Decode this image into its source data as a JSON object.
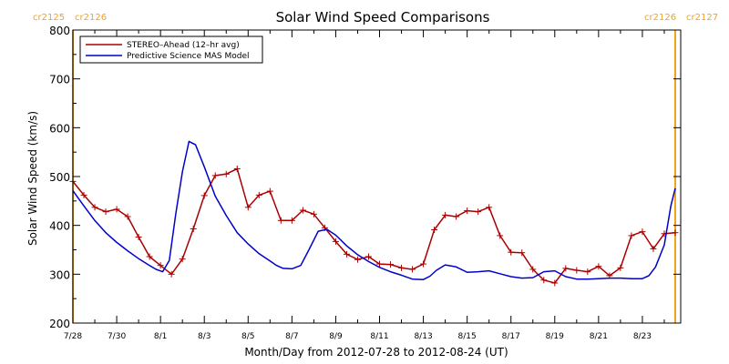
{
  "chart_data": {
    "type": "line",
    "title": "Solar Wind Speed Comparisons",
    "xlabel": "Month/Day from 2012-07-28 to 2012-08-24 (UT)",
    "ylabel": "Solar Wind Speed (km/s)",
    "xlim": [
      0,
      27.75
    ],
    "ylim": [
      200,
      800
    ],
    "x_unit": "days since 2012-07-28 00:00 UT",
    "y_ticks": [
      200,
      300,
      400,
      500,
      600,
      700,
      800
    ],
    "x_ticks": [
      {
        "x": 0,
        "label": "7/28"
      },
      {
        "x": 2,
        "label": "7/30"
      },
      {
        "x": 4,
        "label": "8/1"
      },
      {
        "x": 6,
        "label": "8/3"
      },
      {
        "x": 8,
        "label": "8/5"
      },
      {
        "x": 10,
        "label": "8/7"
      },
      {
        "x": 12,
        "label": "8/9"
      },
      {
        "x": 14,
        "label": "8/11"
      },
      {
        "x": 16,
        "label": "8/13"
      },
      {
        "x": 18,
        "label": "8/15"
      },
      {
        "x": 20,
        "label": "8/17"
      },
      {
        "x": 22,
        "label": "8/19"
      },
      {
        "x": 24,
        "label": "8/21"
      },
      {
        "x": 26,
        "label": "8/23"
      }
    ],
    "legend_position": "top-left",
    "carrington": {
      "left": {
        "x": 0,
        "labels": [
          "cr2125",
          "cr2126"
        ]
      },
      "right": {
        "x": 27.5,
        "labels": [
          "cr2126",
          "cr2127"
        ]
      },
      "color": "#f5a21b"
    },
    "series": [
      {
        "name": "STEREO–Ahead (12–hr avg)",
        "color": "#aa0000",
        "markers": true,
        "x": [
          0.0,
          0.5,
          1.0,
          1.5,
          2.0,
          2.5,
          3.0,
          3.5,
          4.0,
          4.5,
          5.0,
          5.5,
          6.0,
          6.5,
          7.0,
          7.5,
          8.0,
          8.5,
          9.0,
          9.5,
          10.0,
          10.5,
          11.0,
          11.5,
          12.0,
          12.5,
          13.0,
          13.5,
          14.0,
          14.5,
          15.0,
          15.5,
          16.0,
          16.5,
          17.0,
          17.5,
          18.0,
          18.5,
          19.0,
          19.5,
          20.0,
          20.5,
          21.0,
          21.5,
          22.0,
          22.5,
          23.0,
          23.5,
          24.0,
          24.5,
          25.0,
          25.5,
          26.0,
          26.5,
          27.0,
          27.5
        ],
        "y": [
          490,
          462,
          437,
          428,
          433,
          418,
          376,
          336,
          318,
          300,
          331,
          393,
          461,
          502,
          505,
          516,
          437,
          462,
          470,
          410,
          410,
          431,
          423,
          395,
          367,
          341,
          330,
          336,
          321,
          320,
          313,
          310,
          321,
          391,
          421,
          418,
          430,
          428,
          437,
          379,
          345,
          344,
          310,
          288,
          282,
          312,
          308,
          305,
          316,
          297,
          313,
          379,
          387,
          352,
          383,
          385
        ]
      },
      {
        "name": "Predictive Science MAS Model",
        "color": "#0000cc",
        "markers": false,
        "x": [
          0.0,
          0.5,
          1.0,
          1.5,
          2.0,
          2.5,
          3.0,
          3.5,
          3.8,
          4.1,
          4.4,
          4.7,
          5.0,
          5.3,
          5.6,
          6.0,
          6.5,
          7.0,
          7.5,
          8.0,
          8.5,
          9.0,
          9.3,
          9.6,
          10.0,
          10.4,
          10.8,
          11.2,
          11.6,
          12.0,
          12.5,
          13.0,
          13.5,
          14.0,
          14.5,
          15.0,
          15.5,
          16.0,
          16.3,
          16.6,
          17.0,
          17.5,
          18.0,
          18.5,
          19.0,
          19.5,
          20.0,
          20.5,
          21.0,
          21.5,
          22.0,
          22.5,
          23.0,
          23.5,
          24.0,
          24.5,
          25.0,
          25.5,
          26.0,
          26.3,
          26.6,
          27.0,
          27.3,
          27.5
        ],
        "y": [
          471,
          440,
          410,
          385,
          365,
          348,
          332,
          318,
          310,
          305,
          328,
          425,
          510,
          572,
          565,
          520,
          460,
          420,
          385,
          362,
          342,
          327,
          318,
          312,
          311,
          318,
          352,
          388,
          392,
          380,
          358,
          340,
          326,
          314,
          305,
          298,
          290,
          289,
          296,
          308,
          319,
          315,
          304,
          305,
          307,
          301,
          295,
          292,
          293,
          305,
          307,
          295,
          290,
          290,
          291,
          292,
          292,
          291,
          291,
          297,
          315,
          360,
          440,
          476
        ]
      }
    ]
  }
}
